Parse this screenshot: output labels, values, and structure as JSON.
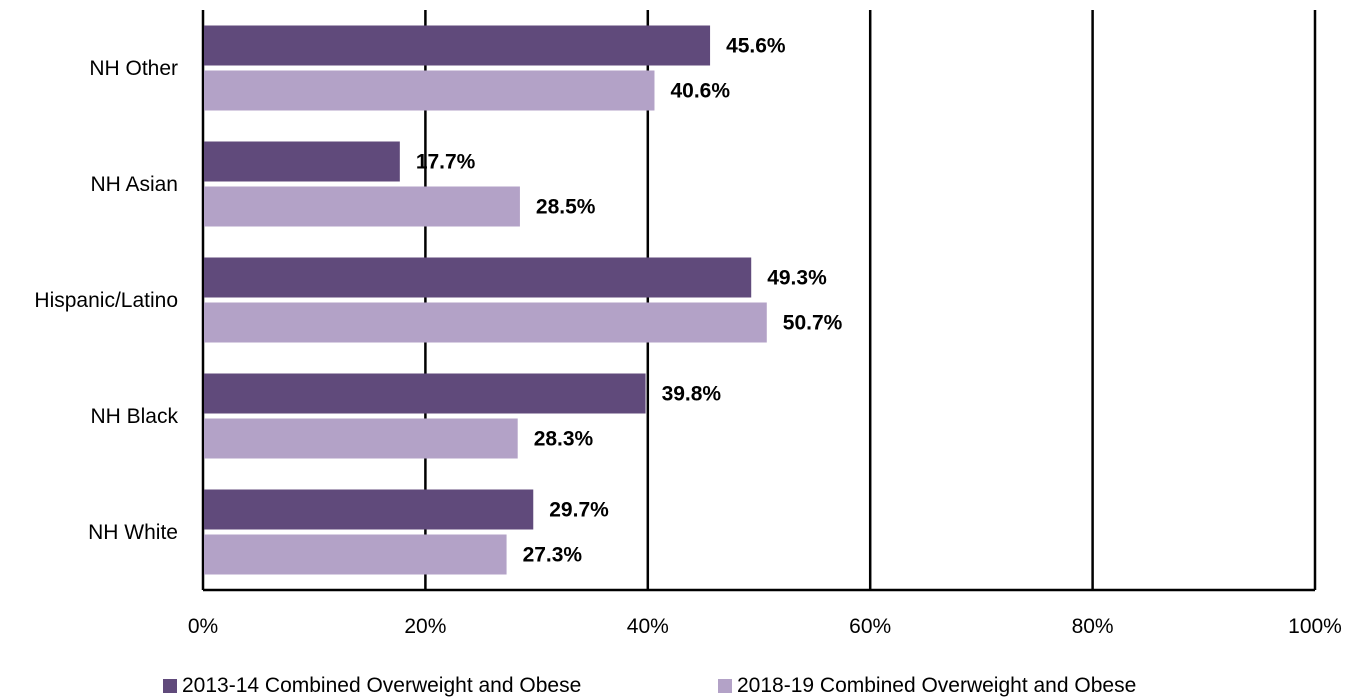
{
  "chart_data": {
    "type": "bar",
    "orientation": "horizontal",
    "categories": [
      "NH Other",
      "NH Asian",
      "Hispanic/Latino",
      "NH Black",
      "NH White"
    ],
    "series": [
      {
        "name": "2013-14 Combined Overweight and Obese",
        "values": [
          45.6,
          17.7,
          49.3,
          39.8,
          29.7
        ],
        "color": "#604a7b"
      },
      {
        "name": "2018-19 Combined Overweight and Obese",
        "values": [
          40.6,
          28.5,
          50.7,
          28.3,
          27.3
        ],
        "color": "#b3a2c7"
      }
    ],
    "data_labels": [
      [
        "45.6%",
        "17.7%",
        "49.3%",
        "39.8%",
        "29.7%"
      ],
      [
        "40.6%",
        "28.5%",
        "50.7%",
        "28.3%",
        "27.3%"
      ]
    ],
    "xlim": [
      0,
      100
    ],
    "xticks": [
      0,
      20,
      40,
      60,
      80,
      100
    ],
    "xtick_labels": [
      "0%",
      "20%",
      "40%",
      "60%",
      "80%",
      "100%"
    ],
    "grid": true,
    "legend_position": "bottom"
  }
}
